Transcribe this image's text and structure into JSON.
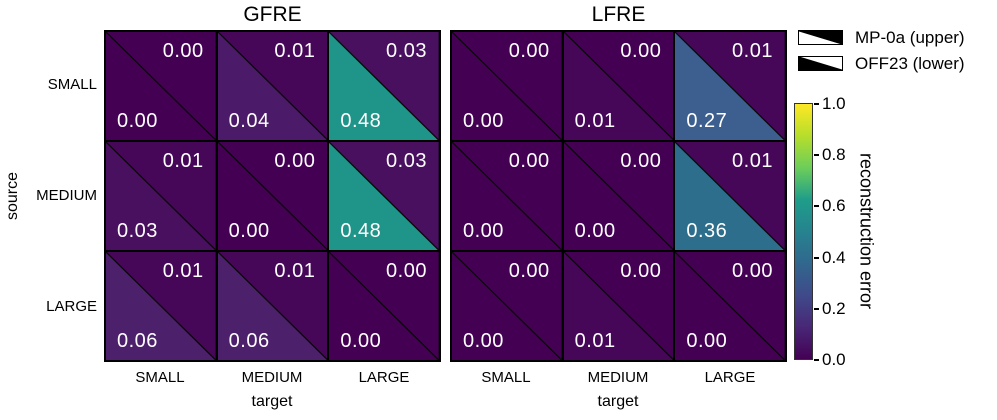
{
  "figure": {
    "x_axis_label": "target",
    "y_axis_label": "source"
  },
  "legend": {
    "items": [
      {
        "label": "MP-0a (upper)",
        "filled_triangle": "upper"
      },
      {
        "label": "OFF23 (lower)",
        "filled_triangle": "lower"
      }
    ]
  },
  "colorbar": {
    "label": "reconstruction error",
    "min": 0.0,
    "max": 1.0,
    "tick_labels": [
      "1.0",
      "0.8",
      "0.6",
      "0.4",
      "0.2",
      "0.0"
    ],
    "colormap": "viridis",
    "gradient_stops": [
      "#440154",
      "#482777",
      "#3f4a8a",
      "#31678e",
      "#26838f",
      "#1f9d8a",
      "#6cce5a",
      "#b6de2b",
      "#fee825"
    ]
  },
  "chart_data": [
    {
      "type": "heatmap",
      "title": "GFRE",
      "xlabel": "target",
      "ylabel": "source",
      "x_categories": [
        "SMALL",
        "MEDIUM",
        "LARGE"
      ],
      "y_categories": [
        "SMALL",
        "MEDIUM",
        "LARGE"
      ],
      "value_range": [
        0.0,
        1.0
      ],
      "colormap": "viridis",
      "series": [
        {
          "name": "MP-0a (upper)",
          "values": [
            [
              0.0,
              0.01,
              0.03
            ],
            [
              0.01,
              0.0,
              0.03
            ],
            [
              0.01,
              0.01,
              0.0
            ]
          ]
        },
        {
          "name": "OFF23 (lower)",
          "values": [
            [
              0.0,
              0.04,
              0.48
            ],
            [
              0.03,
              0.0,
              0.48
            ],
            [
              0.06,
              0.06,
              0.0
            ]
          ]
        }
      ]
    },
    {
      "type": "heatmap",
      "title": "LFRE",
      "xlabel": "target",
      "ylabel": "source",
      "x_categories": [
        "SMALL",
        "MEDIUM",
        "LARGE"
      ],
      "y_categories": [
        "SMALL",
        "MEDIUM",
        "LARGE"
      ],
      "value_range": [
        0.0,
        1.0
      ],
      "colormap": "viridis",
      "series": [
        {
          "name": "MP-0a (upper)",
          "values": [
            [
              0.0,
              0.0,
              0.01
            ],
            [
              0.0,
              0.0,
              0.01
            ],
            [
              0.0,
              0.0,
              0.0
            ]
          ]
        },
        {
          "name": "OFF23 (lower)",
          "values": [
            [
              0.0,
              0.01,
              0.27
            ],
            [
              0.0,
              0.0,
              0.36
            ],
            [
              0.0,
              0.01,
              0.0
            ]
          ]
        }
      ]
    }
  ],
  "value_colors": {
    "0.00": "#440154",
    "0.01": "#460759",
    "0.03": "#48105f",
    "0.04": "#4b1a68",
    "0.06": "#4d206b",
    "0.27": "#3c5f90",
    "0.36": "#2d6e8c",
    "0.48": "#1f9489"
  }
}
